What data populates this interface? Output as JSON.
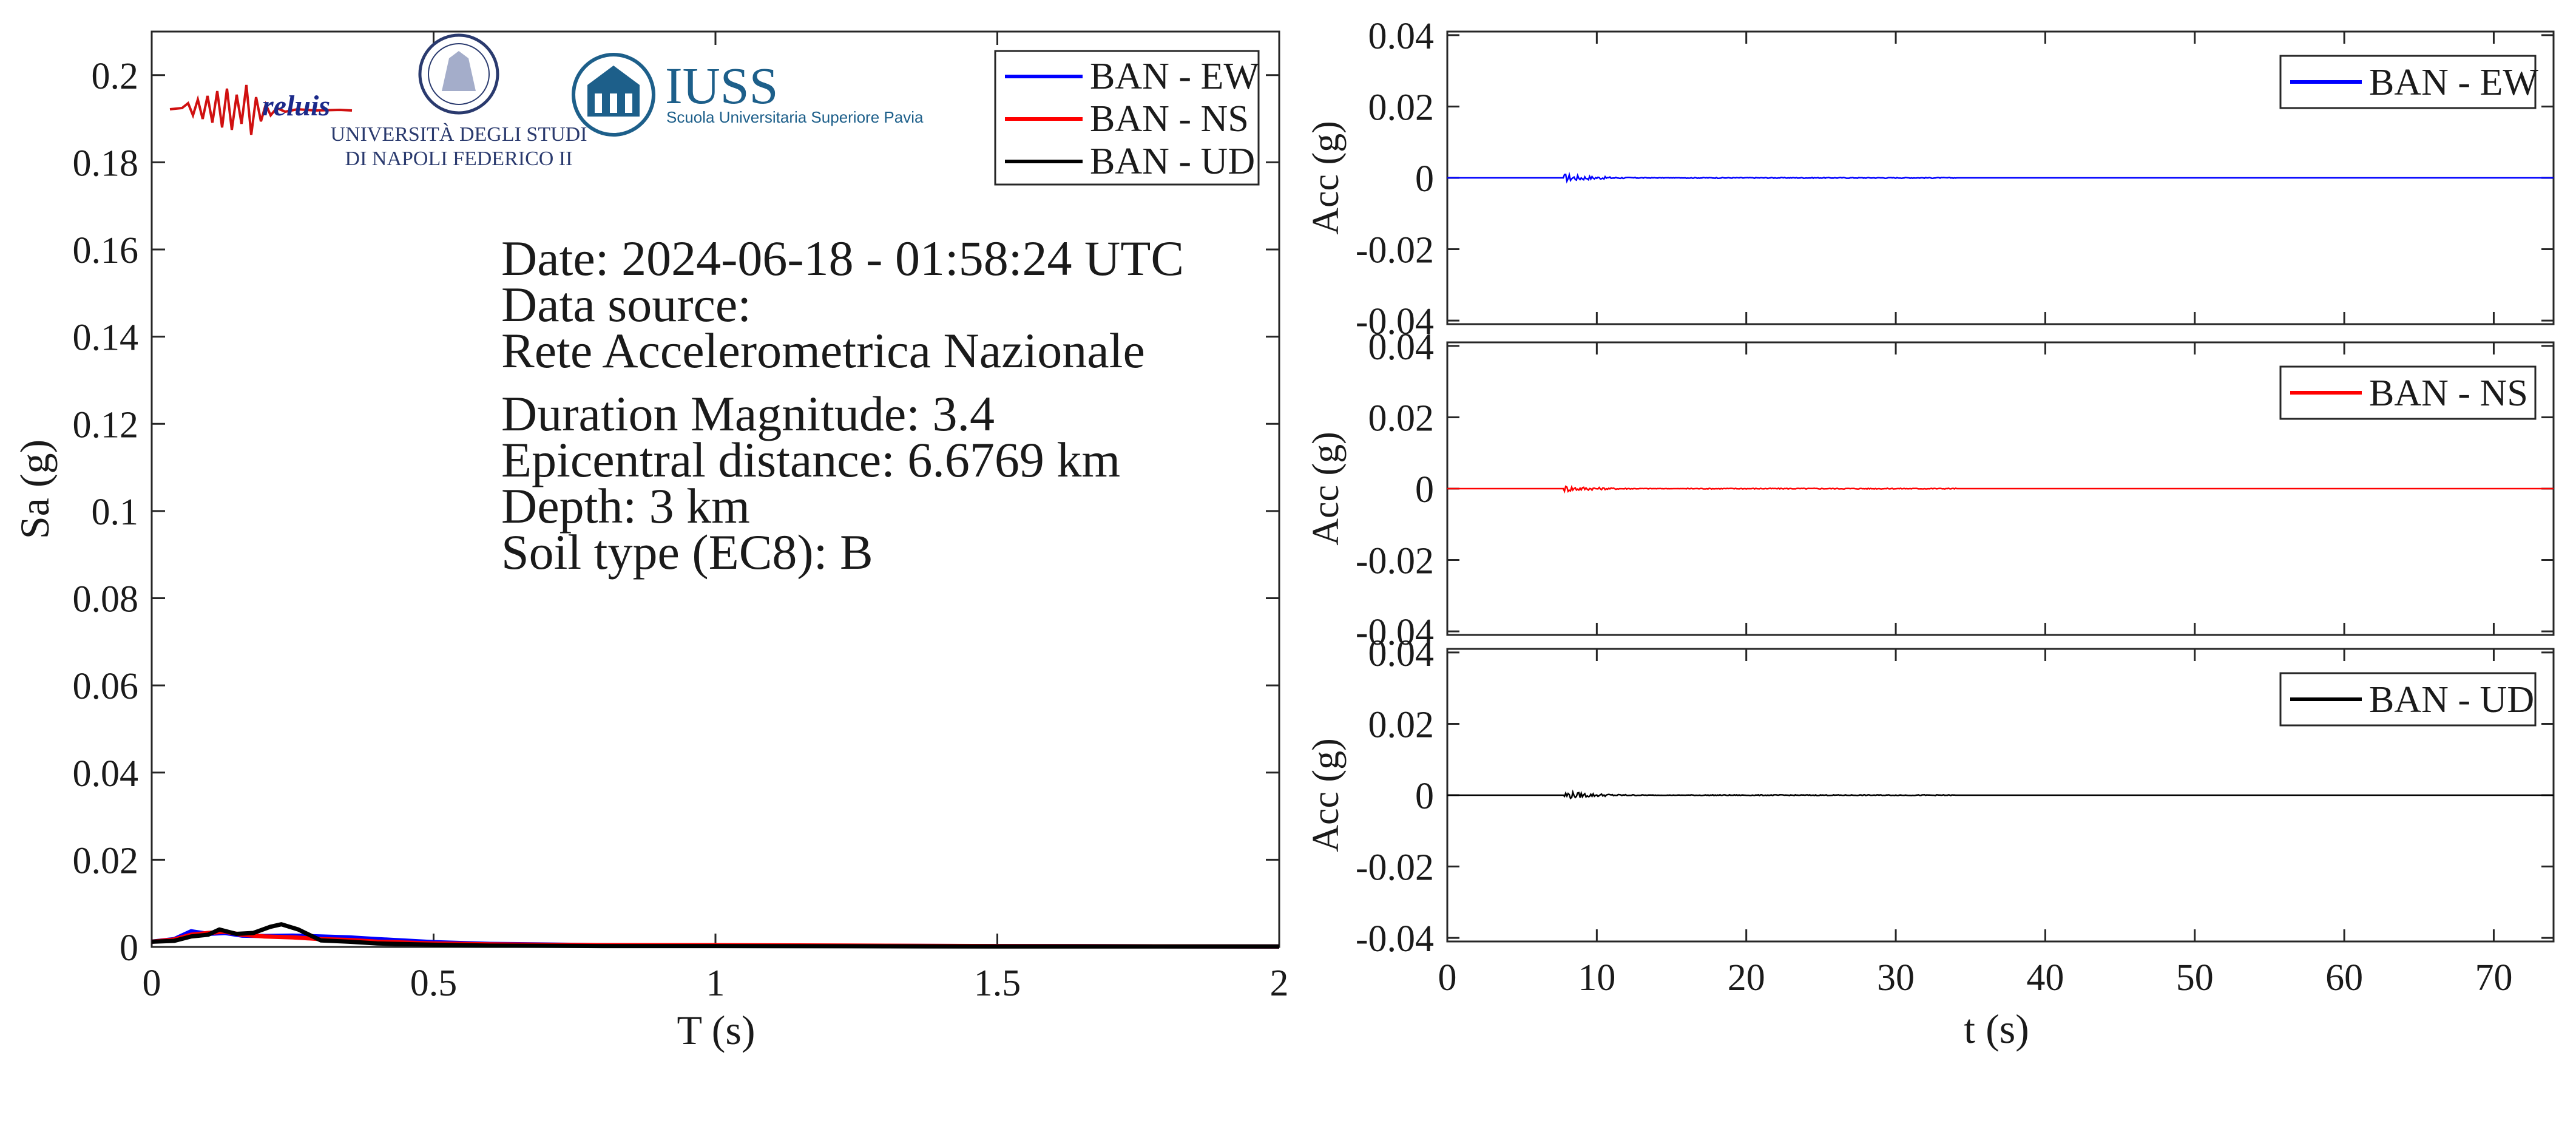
{
  "chart_data": [
    {
      "type": "line",
      "xlabel": "T (s)",
      "ylabel": "Sa (g)",
      "xlim": [
        0,
        2
      ],
      "ylim": [
        0,
        0.21
      ],
      "xticks": [
        "0",
        "0.5",
        "1",
        "1.5",
        "2"
      ],
      "yticks": [
        "0",
        "0.02",
        "0.04",
        "0.06",
        "0.08",
        "0.1",
        "0.12",
        "0.14",
        "0.16",
        "0.18",
        "0.2"
      ],
      "legend_position": "top-right",
      "series": [
        {
          "name": "BAN - EW",
          "color": "#0000ff",
          "x": [
            0,
            0.04,
            0.07,
            0.1,
            0.13,
            0.16,
            0.2,
            0.25,
            0.3,
            0.35,
            0.4,
            0.5,
            0.6,
            0.8,
            1.0,
            1.5,
            2.0
          ],
          "y": [
            0.0012,
            0.0018,
            0.0036,
            0.003,
            0.0032,
            0.0026,
            0.0025,
            0.0026,
            0.0024,
            0.0022,
            0.0018,
            0.0011,
            0.0007,
            0.0004,
            0.0003,
            0.0002,
            0.0001
          ]
        },
        {
          "name": "BAN - NS",
          "color": "#ff0000",
          "x": [
            0,
            0.04,
            0.07,
            0.1,
            0.13,
            0.16,
            0.2,
            0.25,
            0.3,
            0.35,
            0.4,
            0.5,
            0.6,
            0.8,
            1.0,
            1.5,
            2.0
          ],
          "y": [
            0.0012,
            0.0017,
            0.0028,
            0.0032,
            0.0035,
            0.0028,
            0.0024,
            0.0022,
            0.0018,
            0.0016,
            0.0012,
            0.0008,
            0.0006,
            0.0004,
            0.0004,
            0.0002,
            0.0001
          ]
        },
        {
          "name": "BAN - UD",
          "color": "#000000",
          "x": [
            0,
            0.04,
            0.07,
            0.1,
            0.12,
            0.15,
            0.18,
            0.21,
            0.23,
            0.26,
            0.3,
            0.35,
            0.4,
            0.5,
            0.6,
            0.8,
            1.0,
            1.5,
            2.0
          ],
          "y": [
            0.0012,
            0.0014,
            0.0024,
            0.0028,
            0.004,
            0.003,
            0.0032,
            0.0046,
            0.0052,
            0.004,
            0.0015,
            0.0012,
            0.0008,
            0.0005,
            0.0003,
            0.0002,
            0.0002,
            0.0001,
            0.0001
          ]
        }
      ],
      "annotations": [
        "Date: 2024-06-18 - 01:58:24 UTC",
        "Data source:",
        "Rete Accelerometrica Nazionale",
        "Duration Magnitude: 3.4",
        "Epicentral distance: 6.6769 km",
        "Depth: 3 km",
        "Soil type (EC8): B"
      ],
      "logos": {
        "reluis": "reluis",
        "unina": [
          "UNIVERSITÀ DEGLI STUDI",
          "DI NAPOLI FEDERICO II"
        ],
        "iuss": [
          "IUSS",
          "Scuola Universitaria Superiore Pavia"
        ]
      }
    },
    {
      "type": "line",
      "ylabel": "Acc (g)",
      "xlim": [
        0,
        74
      ],
      "ylim": [
        -0.041,
        0.041
      ],
      "yticks": [
        "-0.04",
        "-0.02",
        "0",
        "0.02",
        "0.04"
      ],
      "legend_position": "top-right",
      "series": [
        {
          "name": "BAN - EW",
          "color": "#0000ff",
          "burst": {
            "start_s": 7.8,
            "peak_g": 0.0012,
            "end_s": 16
          }
        }
      ]
    },
    {
      "type": "line",
      "ylabel": "Acc (g)",
      "xlim": [
        0,
        74
      ],
      "ylim": [
        -0.041,
        0.041
      ],
      "yticks": [
        "-0.04",
        "-0.02",
        "0",
        "0.02",
        "0.04"
      ],
      "legend_position": "top-right",
      "series": [
        {
          "name": "BAN - NS",
          "color": "#ff0000",
          "burst": {
            "start_s": 7.8,
            "peak_g": 0.001,
            "end_s": 16
          }
        }
      ]
    },
    {
      "type": "line",
      "xlabel": "t (s)",
      "ylabel": "Acc (g)",
      "xlim": [
        0,
        74
      ],
      "ylim": [
        -0.041,
        0.041
      ],
      "xticks": [
        "0",
        "10",
        "20",
        "30",
        "40",
        "50",
        "60",
        "70"
      ],
      "yticks": [
        "-0.04",
        "-0.02",
        "0",
        "0.02",
        "0.04"
      ],
      "legend_position": "top-right",
      "series": [
        {
          "name": "BAN - UD",
          "color": "#000000",
          "burst": {
            "start_s": 7.8,
            "peak_g": 0.0012,
            "end_s": 16
          }
        }
      ]
    }
  ]
}
